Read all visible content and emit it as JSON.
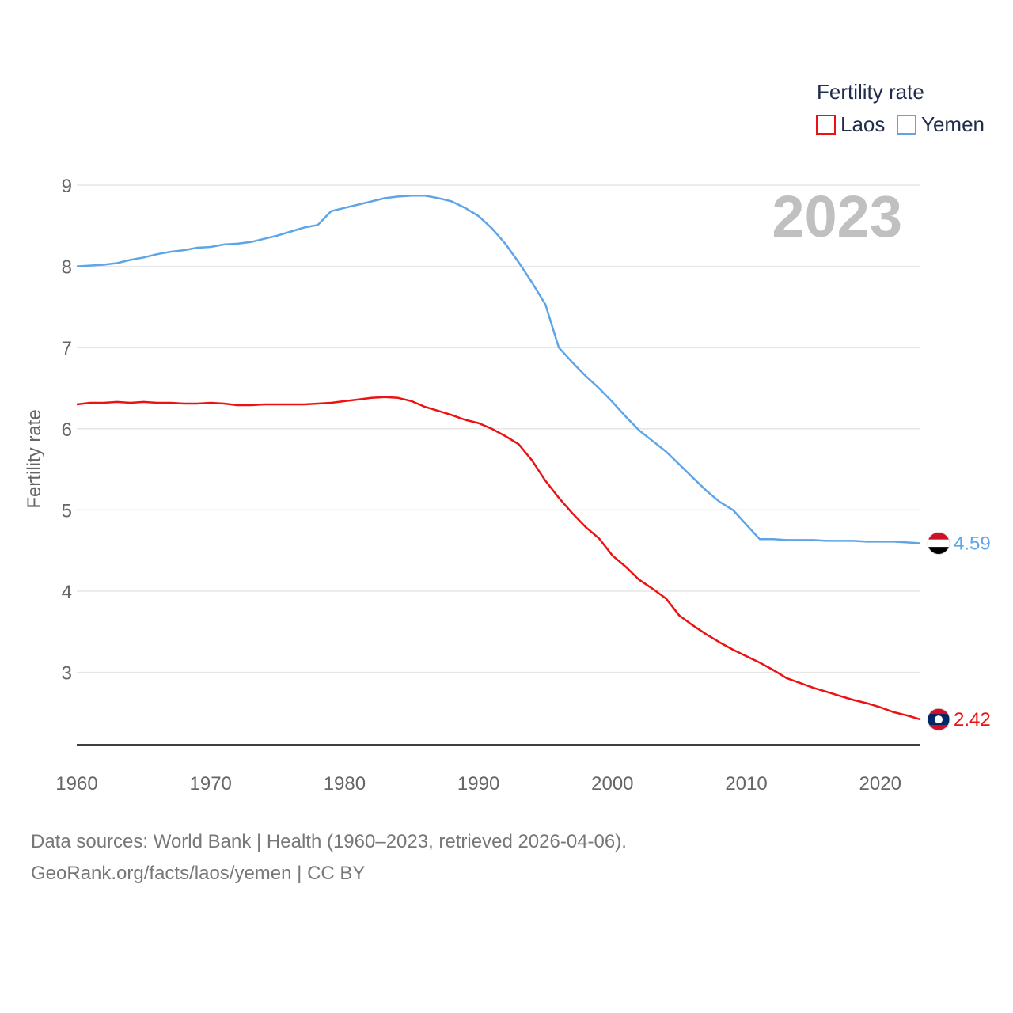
{
  "chart_data": {
    "type": "line",
    "title": "Fertility rate",
    "ylabel": "Fertility rate",
    "xlabel": "",
    "year_label": "2023",
    "xlim": [
      1960,
      2023
    ],
    "ylim": [
      2.1,
      9.0
    ],
    "xticks": [
      1960,
      1970,
      1980,
      1990,
      2000,
      2010,
      2020
    ],
    "yticks": [
      3,
      4,
      5,
      6,
      7,
      8,
      9
    ],
    "legend_position": "top-right",
    "series": [
      {
        "name": "Laos",
        "color": "#ee1111",
        "flag": "laos-flag",
        "end_label": "2.42",
        "x": [
          1960,
          1961,
          1962,
          1963,
          1964,
          1965,
          1966,
          1967,
          1968,
          1969,
          1970,
          1971,
          1972,
          1973,
          1974,
          1975,
          1976,
          1977,
          1978,
          1979,
          1980,
          1981,
          1982,
          1983,
          1984,
          1985,
          1986,
          1987,
          1988,
          1989,
          1990,
          1991,
          1992,
          1993,
          1994,
          1995,
          1996,
          1997,
          1998,
          1999,
          2000,
          2001,
          2002,
          2003,
          2004,
          2005,
          2006,
          2007,
          2008,
          2009,
          2010,
          2011,
          2012,
          2013,
          2014,
          2015,
          2016,
          2017,
          2018,
          2019,
          2020,
          2021,
          2022,
          2023
        ],
        "values": [
          6.3,
          6.32,
          6.32,
          6.33,
          6.32,
          6.33,
          6.32,
          6.32,
          6.31,
          6.31,
          6.32,
          6.31,
          6.29,
          6.29,
          6.3,
          6.3,
          6.3,
          6.3,
          6.31,
          6.32,
          6.34,
          6.36,
          6.38,
          6.39,
          6.38,
          6.34,
          6.27,
          6.22,
          6.17,
          6.11,
          6.07,
          6.0,
          5.91,
          5.81,
          5.61,
          5.36,
          5.15,
          4.96,
          4.79,
          4.65,
          4.44,
          4.3,
          4.14,
          4.03,
          3.91,
          3.7,
          3.58,
          3.47,
          3.37,
          3.28,
          3.2,
          3.12,
          3.03,
          2.93,
          2.87,
          2.81,
          2.76,
          2.71,
          2.66,
          2.62,
          2.57,
          2.51,
          2.47,
          2.42
        ]
      },
      {
        "name": "Yemen",
        "color": "#5ea5e8",
        "flag": "yemen-flag",
        "end_label": "4.59",
        "x": [
          1960,
          1961,
          1962,
          1963,
          1964,
          1965,
          1966,
          1967,
          1968,
          1969,
          1970,
          1971,
          1972,
          1973,
          1974,
          1975,
          1976,
          1977,
          1978,
          1979,
          1980,
          1981,
          1982,
          1983,
          1984,
          1985,
          1986,
          1987,
          1988,
          1989,
          1990,
          1991,
          1992,
          1993,
          1994,
          1995,
          1996,
          1997,
          1998,
          1999,
          2000,
          2001,
          2002,
          2003,
          2004,
          2005,
          2006,
          2007,
          2008,
          2009,
          2010,
          2011,
          2012,
          2013,
          2014,
          2015,
          2016,
          2017,
          2018,
          2019,
          2020,
          2021,
          2022,
          2023
        ],
        "values": [
          8.0,
          8.01,
          8.02,
          8.04,
          8.08,
          8.11,
          8.15,
          8.18,
          8.2,
          8.23,
          8.24,
          8.27,
          8.28,
          8.3,
          8.34,
          8.38,
          8.43,
          8.48,
          8.51,
          8.68,
          8.72,
          8.76,
          8.8,
          8.84,
          8.86,
          8.87,
          8.87,
          8.84,
          8.8,
          8.72,
          8.62,
          8.47,
          8.28,
          8.05,
          7.8,
          7.53,
          7.0,
          6.82,
          6.65,
          6.5,
          6.33,
          6.15,
          5.98,
          5.85,
          5.72,
          5.56,
          5.4,
          5.24,
          5.1,
          5.0,
          4.82,
          4.64,
          4.64,
          4.63,
          4.63,
          4.63,
          4.62,
          4.62,
          4.62,
          4.61,
          4.61,
          4.61,
          4.6,
          4.59
        ]
      }
    ]
  },
  "footer": {
    "source_line": "Data sources: World Bank | Health (1960–2023, retrieved 2026-04-06).",
    "license_line": "GeoRank.org/facts/laos/yemen | CC BY"
  }
}
